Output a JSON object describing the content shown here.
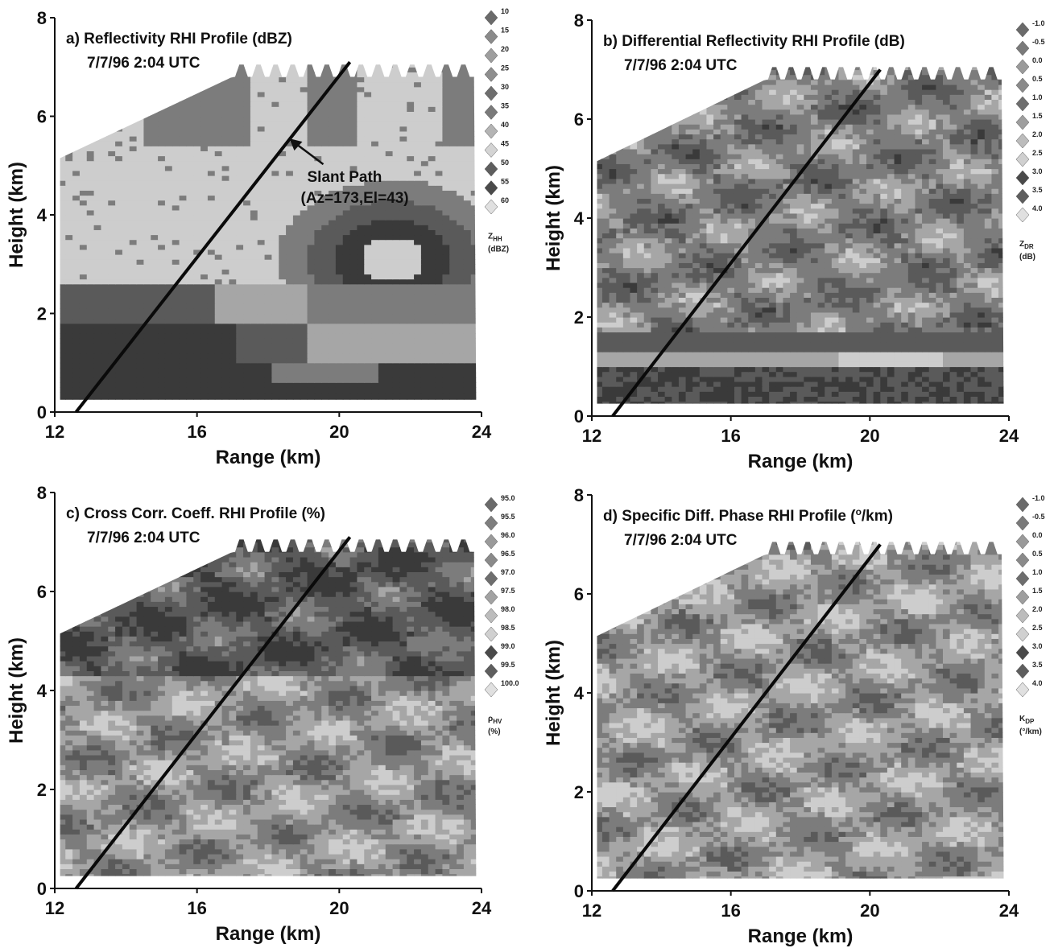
{
  "chart_data": [
    {
      "type": "heatmap",
      "id": "a",
      "title": "a) Reflectivity RHI Profile (dBZ)",
      "subtitle": "7/7/96 2:04 UTC",
      "xlabel": "Range (km)",
      "ylabel": "Height (km)",
      "xlim": [
        12,
        24
      ],
      "ylim": [
        0,
        8
      ],
      "xticks": [
        "12",
        "16",
        "20",
        "24"
      ],
      "yticks": [
        "0",
        "2",
        "4",
        "6",
        "8"
      ],
      "slant_path": {
        "x": [
          12.6,
          20.3
        ],
        "y": [
          0,
          7.1
        ]
      },
      "annotation": {
        "line1": "Slant Path",
        "line2": "(Az=173,El=43)",
        "arrow_tip": {
          "x": 18.6,
          "y": 5.55
        }
      },
      "legend": {
        "title": "Z",
        "subscript": "HH",
        "unit": "(dBZ)",
        "levels": [
          "10",
          "15",
          "20",
          "25",
          "30",
          "35",
          "40",
          "45",
          "50",
          "55",
          "60"
        ],
        "shades": [
          "#6a6a6a",
          "#8a8a8a",
          "#9e9e9e",
          "#8e8e8e",
          "#6e6e6e",
          "#7a7a7a",
          "#b4b4b4",
          "#d4d4d4",
          "#5e5e5e",
          "#4a4a4a",
          "#e0e0e0"
        ]
      },
      "field": "reflectivity"
    },
    {
      "type": "heatmap",
      "id": "b",
      "title": "b) Differential Reflectivity RHI Profile (dB)",
      "subtitle": "7/7/96 2:04 UTC",
      "xlabel": "Range (km)",
      "ylabel": "Height (km)",
      "xlim": [
        12,
        24
      ],
      "ylim": [
        0,
        8
      ],
      "xticks": [
        "12",
        "16",
        "20",
        "24"
      ],
      "yticks": [
        "0",
        "2",
        "4",
        "6",
        "8"
      ],
      "slant_path": {
        "x": [
          12.6,
          20.3
        ],
        "y": [
          0,
          7.0
        ]
      },
      "legend": {
        "title": "Z",
        "subscript": "DR",
        "unit": "(dB)",
        "levels": [
          "-1.0",
          "-0.5",
          "0.0",
          "0.5",
          "1.0",
          "1.5",
          "2.0",
          "2.5",
          "3.0",
          "3.5",
          "4.0"
        ],
        "shades": [
          "#6a6a6a",
          "#7a7a7a",
          "#9a9a9a",
          "#8a8a8a",
          "#6e6e6e",
          "#9e9e9e",
          "#bcbcbc",
          "#d0d0d0",
          "#4a4a4a",
          "#5e5e5e",
          "#e0e0e0"
        ]
      },
      "field": "zdr"
    },
    {
      "type": "heatmap",
      "id": "c",
      "title": "c) Cross Corr. Coeff. RHI Profile (%)",
      "subtitle": "7/7/96 2:04 UTC",
      "xlabel": "Range (km)",
      "ylabel": "Height (km)",
      "xlim": [
        12,
        24
      ],
      "ylim": [
        0,
        8
      ],
      "xticks": [
        "12",
        "16",
        "20",
        "24"
      ],
      "yticks": [
        "0",
        "2",
        "4",
        "6",
        "8"
      ],
      "slant_path": {
        "x": [
          12.6,
          20.3
        ],
        "y": [
          0,
          7.1
        ]
      },
      "legend": {
        "title": "ρ",
        "subscript": "HV",
        "unit": "(%)",
        "levels": [
          "95.0",
          "95.5",
          "96.0",
          "96.5",
          "97.0",
          "97.5",
          "98.0",
          "98.5",
          "99.0",
          "99.5",
          "100.0"
        ],
        "shades": [
          "#6a6a6a",
          "#7e7e7e",
          "#9a9a9a",
          "#8a8a8a",
          "#6e6e6e",
          "#a2a2a2",
          "#bcbcbc",
          "#d0d0d0",
          "#4a4a4a",
          "#5e5e5e",
          "#e0e0e0"
        ]
      },
      "field": "rhohv"
    },
    {
      "type": "heatmap",
      "id": "d",
      "title": "d) Specific Diff. Phase RHI Profile (",
      "title_sup": "o",
      "title_end": "/km)",
      "subtitle": "7/7/96 2:04 UTC",
      "xlabel": "Range (km)",
      "ylabel": "Height (km)",
      "xlim": [
        12,
        24
      ],
      "ylim": [
        0,
        8
      ],
      "xticks": [
        "12",
        "16",
        "20",
        "24"
      ],
      "yticks": [
        "0",
        "2",
        "4",
        "6",
        "8"
      ],
      "slant_path": {
        "x": [
          12.6,
          20.3
        ],
        "y": [
          0,
          7.0
        ]
      },
      "legend": {
        "title": "K",
        "subscript": "DP",
        "unit": "(°/km)",
        "levels": [
          "-1.0",
          "-0.5",
          "0.0",
          "0.5",
          "1.0",
          "1.5",
          "2.0",
          "2.5",
          "3.0",
          "3.5",
          "4.0"
        ],
        "shades": [
          "#6a6a6a",
          "#7a7a7a",
          "#9a9a9a",
          "#8a8a8a",
          "#6e6e6e",
          "#9e9e9e",
          "#bcbcbc",
          "#d0d0d0",
          "#4a4a4a",
          "#5e5e5e",
          "#e0e0e0"
        ]
      },
      "field": "kdp"
    }
  ]
}
